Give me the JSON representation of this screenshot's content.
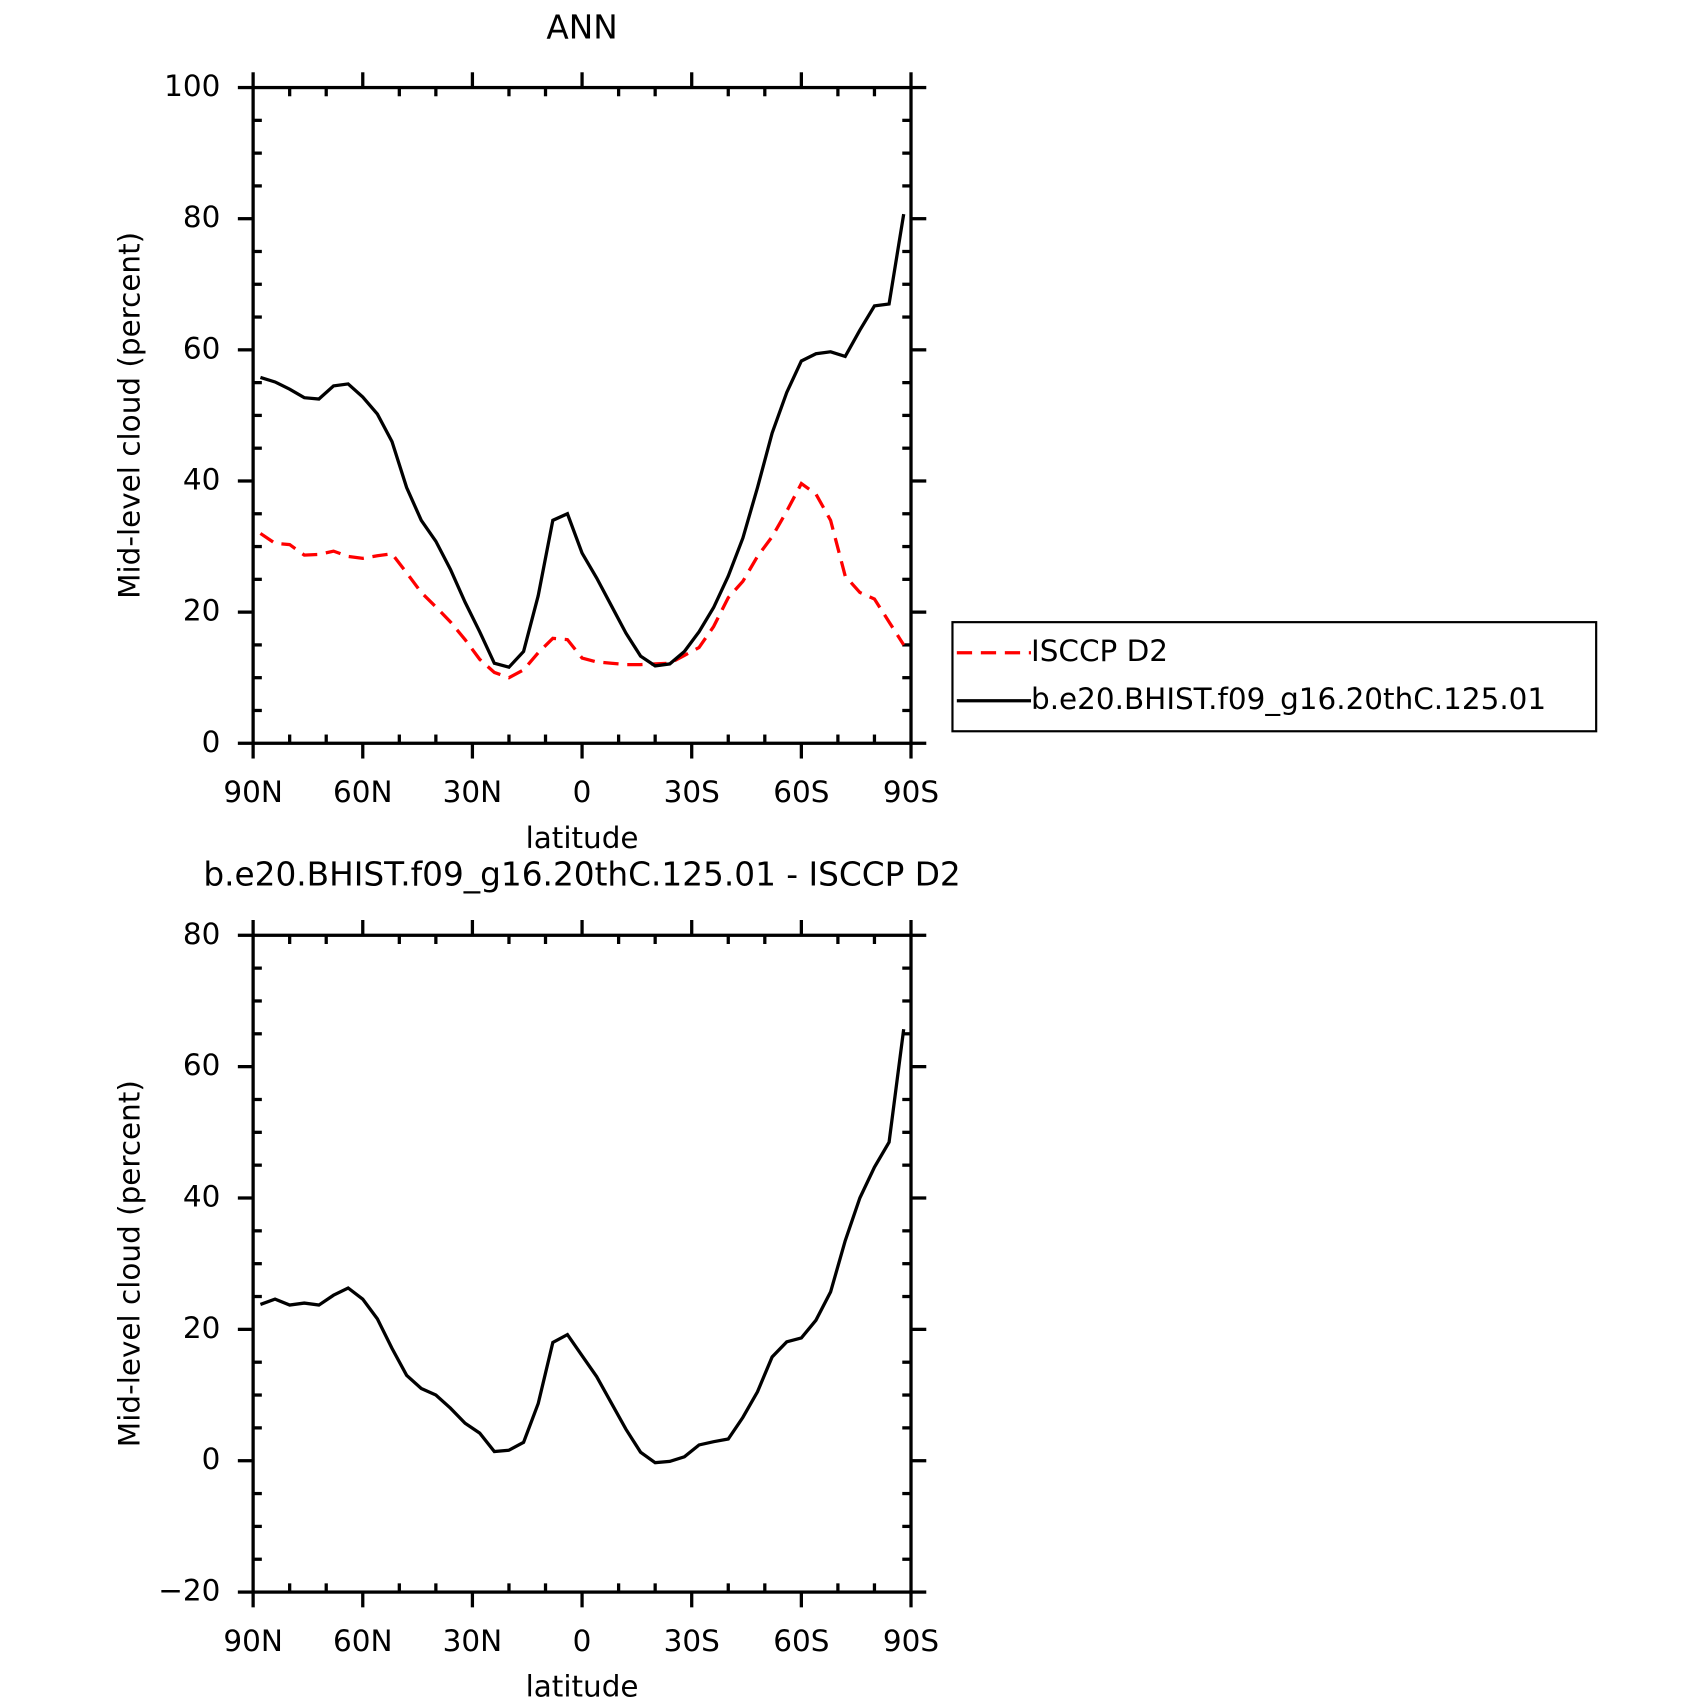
{
  "chart_data": [
    {
      "type": "line",
      "title": "ANN",
      "xlabel": "latitude",
      "ylabel": "Mid-level cloud (percent)",
      "x": [
        88,
        84,
        80,
        76,
        72,
        68,
        64,
        60,
        56,
        52,
        48,
        44,
        40,
        36,
        32,
        28,
        24,
        20,
        16,
        12,
        8,
        4,
        0,
        -4,
        -8,
        -12,
        -16,
        -20,
        -24,
        -28,
        -32,
        -36,
        -40,
        -44,
        -48,
        -52,
        -56,
        -60,
        -64,
        -68,
        -72,
        -76,
        -80,
        -84,
        -88
      ],
      "xlim": [
        90,
        -90
      ],
      "xticks": [
        {
          "value": 90,
          "label": "90N"
        },
        {
          "value": 60,
          "label": "60N"
        },
        {
          "value": 30,
          "label": "30N"
        },
        0,
        {
          "value": -30,
          "label": "30S"
        },
        {
          "value": -60,
          "label": "60S"
        },
        {
          "value": -90,
          "label": "90S"
        }
      ],
      "ylim": [
        0,
        100
      ],
      "yticks": [
        0,
        20,
        40,
        60,
        80,
        100
      ],
      "legend": "right",
      "series": [
        {
          "name": "ISCCP D2",
          "color": "#ff0000",
          "dash": true,
          "values": [
            32,
            30.5,
            30.3,
            28.7,
            28.8,
            29.3,
            28.5,
            28.2,
            28.6,
            28.9,
            26,
            23,
            20.8,
            18.5,
            15.8,
            12.8,
            10.8,
            10,
            11.2,
            13.8,
            16,
            15.8,
            13,
            12.4,
            12.2,
            12,
            12,
            12.1,
            12.2,
            13.4,
            14.6,
            17.8,
            22.2,
            24.7,
            28.5,
            31.5,
            35.4,
            39.6,
            38,
            34,
            25.5,
            23,
            22,
            18.5,
            15
          ]
        },
        {
          "name": "b.e20.BHIST.f09_g16.20thC.125.01",
          "color": "#000000",
          "dash": false,
          "values": [
            55.8,
            55.1,
            54,
            52.7,
            52.5,
            54.5,
            54.8,
            52.8,
            50.2,
            46,
            39,
            34,
            30.8,
            26.5,
            21.5,
            17,
            12.2,
            11.6,
            14,
            22.5,
            34,
            35,
            29,
            25.2,
            21,
            16.8,
            13.3,
            11.8,
            12.1,
            14,
            17,
            20.7,
            25.5,
            31.3,
            39,
            47.3,
            53.5,
            58.3,
            59.4,
            59.7,
            59,
            63,
            66.7,
            67,
            80.7
          ]
        }
      ]
    },
    {
      "type": "line",
      "title": "b.e20.BHIST.f09_g16.20thC.125.01 - ISCCP D2",
      "xlabel": "latitude",
      "ylabel": "Mid-level cloud (percent)",
      "x": [
        88,
        84,
        80,
        76,
        72,
        68,
        64,
        60,
        56,
        52,
        48,
        44,
        40,
        36,
        32,
        28,
        24,
        20,
        16,
        12,
        8,
        4,
        0,
        -4,
        -8,
        -12,
        -16,
        -20,
        -24,
        -28,
        -32,
        -36,
        -40,
        -44,
        -48,
        -52,
        -56,
        -60,
        -64,
        -68,
        -72,
        -76,
        -80,
        -84,
        -88
      ],
      "xlim": [
        90,
        -90
      ],
      "xticks": [
        {
          "value": 90,
          "label": "90N"
        },
        {
          "value": 60,
          "label": "60N"
        },
        {
          "value": 30,
          "label": "30N"
        },
        0,
        {
          "value": -30,
          "label": "30S"
        },
        {
          "value": -60,
          "label": "60S"
        },
        {
          "value": -90,
          "label": "90S"
        }
      ],
      "ylim": [
        -20,
        80
      ],
      "yticks": [
        {
          "value": -20,
          "label": "−20"
        },
        0,
        20,
        40,
        60,
        80
      ],
      "series": [
        {
          "color": "#000000",
          "dash": false,
          "values": [
            23.8,
            24.6,
            23.7,
            24,
            23.7,
            25.2,
            26.3,
            24.6,
            21.6,
            17.1,
            13,
            11,
            10,
            8,
            5.7,
            4.2,
            1.4,
            1.6,
            2.8,
            8.7,
            18,
            19.2,
            16,
            12.8,
            8.8,
            4.8,
            1.3,
            -0.3,
            -0.1,
            0.6,
            2.4,
            2.9,
            3.3,
            6.6,
            10.5,
            15.8,
            18.1,
            18.7,
            21.4,
            25.7,
            33.5,
            40,
            44.7,
            48.5,
            65.7
          ]
        }
      ]
    }
  ]
}
